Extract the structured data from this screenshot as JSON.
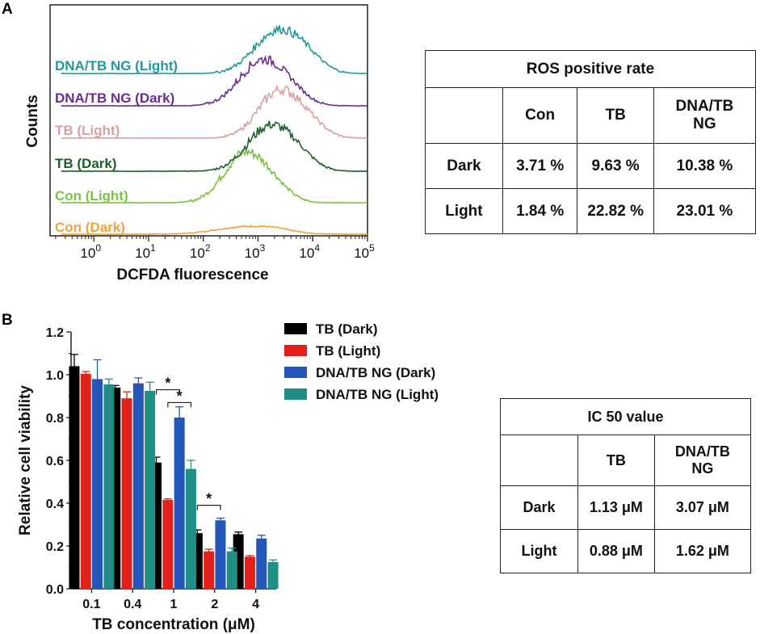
{
  "panel_labels": {
    "a": "A",
    "b": "B"
  },
  "chart_data": [
    {
      "type": "line",
      "title": "",
      "xlabel": "DCFDA fluorescence",
      "ylabel": "Counts",
      "x_scale": "log",
      "xlim_log10": [
        -0.8,
        5
      ],
      "x_tick_labels": [
        {
          "value": 0,
          "label": "10",
          "sup": "0"
        },
        {
          "value": 1,
          "label": "10",
          "sup": "1"
        },
        {
          "value": 2,
          "label": "10",
          "sup": "2"
        },
        {
          "value": 3,
          "label": "10",
          "sup": "3"
        },
        {
          "value": 4,
          "label": "10",
          "sup": "4"
        },
        {
          "value": 5,
          "label": "10",
          "sup": "5"
        }
      ],
      "series": [
        {
          "name": "Con (Dark)",
          "color": "#f0a23c",
          "peak_log10": 2.8,
          "width": 0.55,
          "height": 0.18
        },
        {
          "name": "Con (Light)",
          "color": "#7cc242",
          "peak_log10": 2.75,
          "width": 0.38,
          "height": 1.15
        },
        {
          "name": "TB (Dark)",
          "color": "#1e5e2a",
          "peak_log10": 3.2,
          "width": 0.4,
          "height": 1.05
        },
        {
          "name": "TB (Light)",
          "color": "#d9a0a0",
          "peak_log10": 3.38,
          "width": 0.38,
          "height": 1.1
        },
        {
          "name": "DNA/TB NG (Dark)",
          "color": "#6a2c91",
          "peak_log10": 3.05,
          "width": 0.4,
          "height": 1.05
        },
        {
          "name": "DNA/TB NG (Light)",
          "color": "#1f9a96",
          "peak_log10": 3.35,
          "width": 0.42,
          "height": 1.0
        }
      ]
    },
    {
      "type": "bar",
      "title": "",
      "xlabel": "TB concentration (μM)",
      "ylabel": "Relative cell viability",
      "ylim": [
        0,
        1.2
      ],
      "y_ticks": [
        "0.0",
        "0.2",
        "0.4",
        "0.6",
        "0.8",
        "1.0",
        "1.2"
      ],
      "categories": [
        "0.1",
        "0.4",
        "1",
        "2",
        "4"
      ],
      "legend_position": "top",
      "series": [
        {
          "name": "TB (Dark)",
          "color": "#000000",
          "values": [
            1.04,
            0.94,
            0.59,
            0.26,
            0.255
          ],
          "errors": [
            0.055,
            0.01,
            0.025,
            0.015,
            0.01
          ]
        },
        {
          "name": "TB (Light)",
          "color": "#e3201b",
          "values": [
            1.005,
            0.89,
            0.415,
            0.175,
            0.15
          ],
          "errors": [
            0.01,
            0.03,
            0.005,
            0.01,
            0.005
          ]
        },
        {
          "name": "DNA/TB NG (Dark)",
          "color": "#2455b8",
          "values": [
            0.98,
            0.96,
            0.8,
            0.32,
            0.235
          ],
          "errors": [
            0.09,
            0.025,
            0.05,
            0.01,
            0.015
          ]
        },
        {
          "name": "DNA/TB NG (Light)",
          "color": "#1f8f86",
          "values": [
            0.955,
            0.925,
            0.56,
            0.175,
            0.125
          ],
          "errors": [
            0.025,
            0.04,
            0.04,
            0.015,
            0.01
          ]
        }
      ],
      "significance": [
        {
          "category_index": 2,
          "from_series": 0,
          "to_series": 2,
          "label": "*",
          "y": 0.93
        },
        {
          "category_index": 2,
          "from_series": 1,
          "to_series": 3,
          "label": "*",
          "y": 0.87
        },
        {
          "category_index": 3,
          "from_series": 0,
          "to_series": 2,
          "label": "*",
          "y": 0.39
        }
      ]
    }
  ],
  "ros_table": {
    "title": "ROS positive rate",
    "columns": [
      "Con",
      "TB",
      "DNA/TB NG"
    ],
    "rows": [
      {
        "label": "Dark",
        "values": [
          "3.71 %",
          "9.63 %",
          "10.38 %"
        ]
      },
      {
        "label": "Light",
        "values": [
          "1.84 %",
          "22.82 %",
          "23.01 %"
        ]
      }
    ]
  },
  "ic50_table": {
    "title": "IC 50 value",
    "columns": [
      "TB",
      "DNA/TB NG"
    ],
    "rows": [
      {
        "label": "Dark",
        "values": [
          "1.13 μM",
          "3.07 μM"
        ]
      },
      {
        "label": "Light",
        "values": [
          "0.88 μM",
          "1.62 μM"
        ]
      }
    ]
  }
}
